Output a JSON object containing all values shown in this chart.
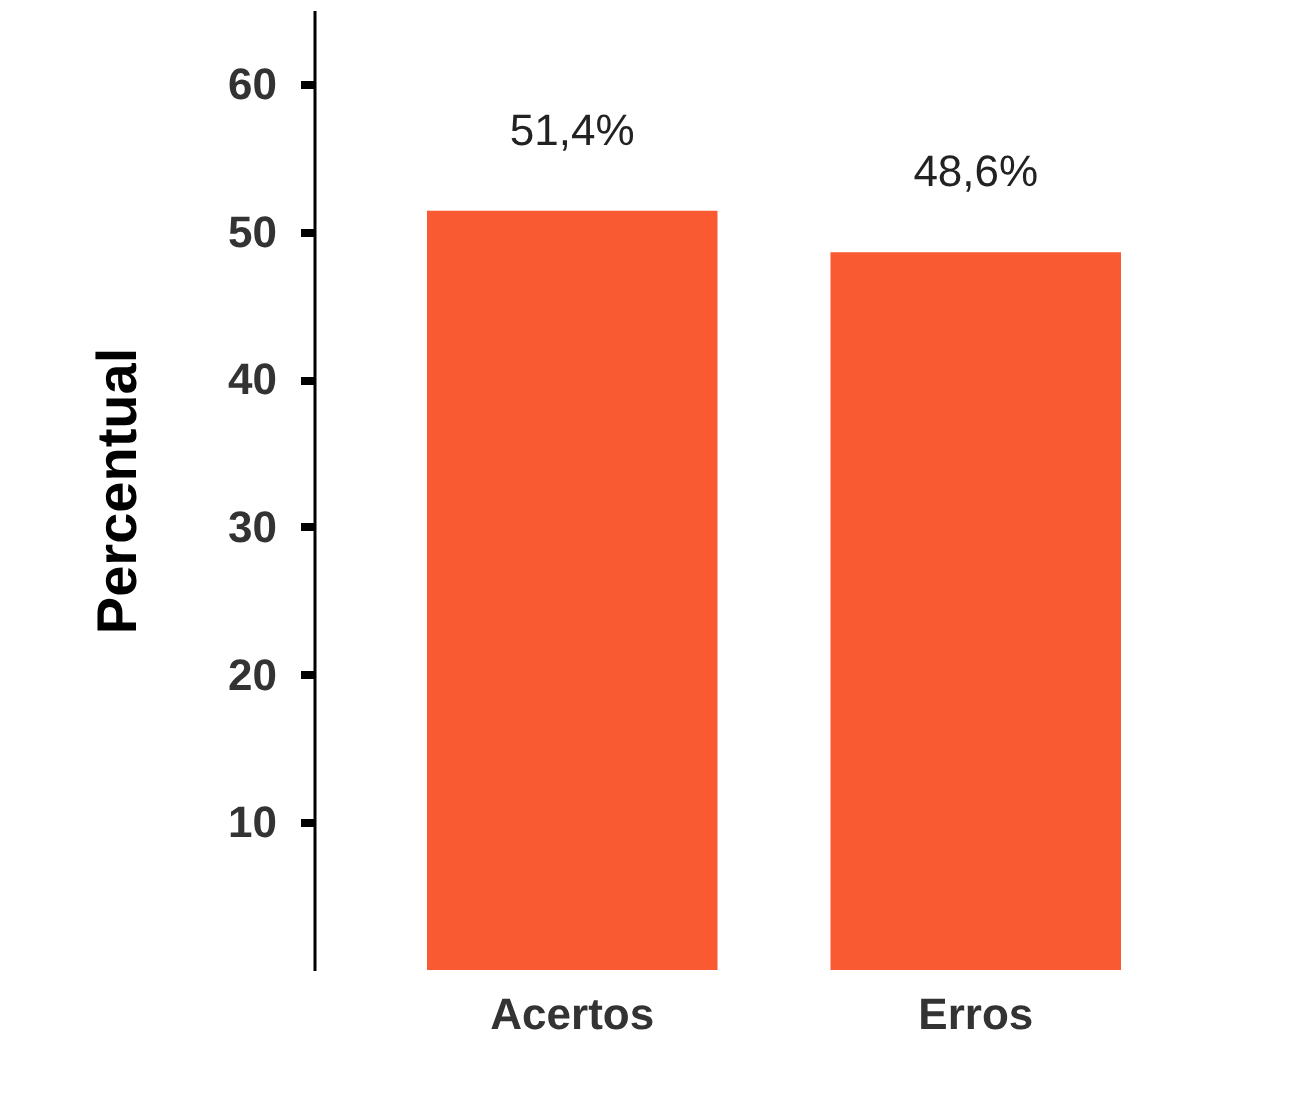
{
  "chart_data": {
    "type": "bar",
    "ylabel": "Percentual",
    "categories": [
      "Acertos",
      "Erros"
    ],
    "values": [
      51.4,
      48.6
    ],
    "value_labels": [
      "51,4%",
      "48,6%"
    ],
    "color": "#f95a32",
    "ylim": [
      0,
      65
    ],
    "yticks": [
      10,
      20,
      30,
      40,
      50,
      60
    ],
    "grid": false
  }
}
